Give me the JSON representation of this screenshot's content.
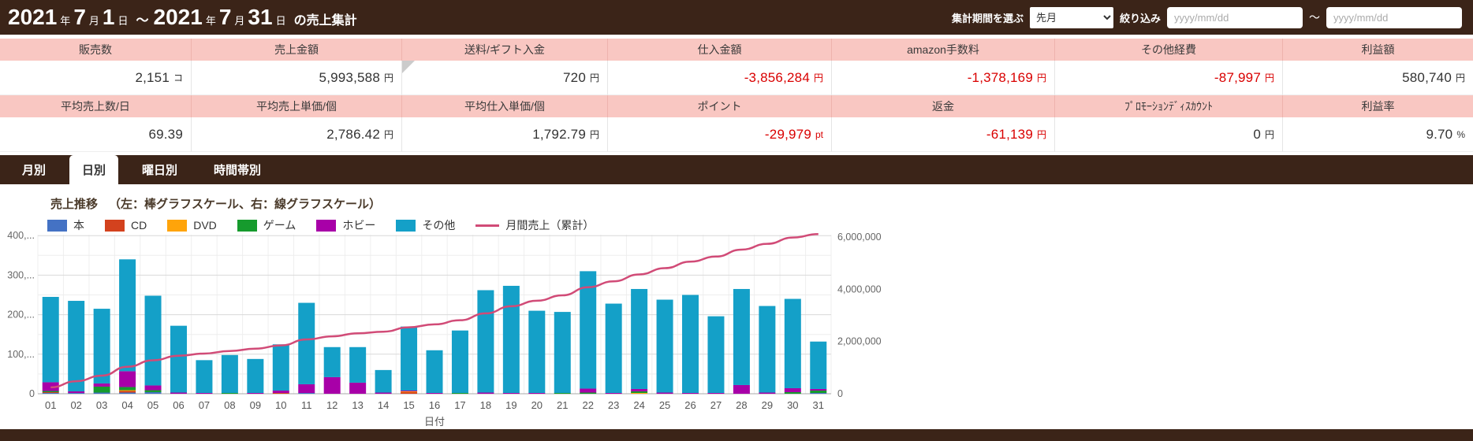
{
  "header": {
    "title_segments": [
      {
        "text": "2021",
        "size": "lg"
      },
      {
        "text": "年",
        "size": "sm"
      },
      {
        "text": "7",
        "size": "lg"
      },
      {
        "text": "月",
        "size": "sm"
      },
      {
        "text": "1",
        "size": "lg"
      },
      {
        "text": "日",
        "size": "sm"
      },
      {
        "text": "～",
        "size": "md"
      },
      {
        "text": "2021",
        "size": "lg"
      },
      {
        "text": "年",
        "size": "sm"
      },
      {
        "text": "7",
        "size": "lg"
      },
      {
        "text": "月",
        "size": "sm"
      },
      {
        "text": "31",
        "size": "lg"
      },
      {
        "text": "日",
        "size": "sm"
      },
      {
        "text": "の売上集計",
        "size": "md"
      }
    ],
    "period_select_label": "集計期間を選ぶ",
    "period_options": [
      "先月"
    ],
    "period_value": "先月",
    "refine_label": "絞り込み",
    "date_from_placeholder": "yyyy/mm/dd",
    "date_range_tilde": "～",
    "date_to_placeholder": "yyyy/mm/dd"
  },
  "summary": {
    "rows": [
      {
        "cells": [
          {
            "label": "販売数",
            "value": "2,151",
            "unit": "コ",
            "red": false
          },
          {
            "label": "売上金額",
            "value": "5,993,588",
            "unit": "円",
            "red": false
          },
          {
            "label": "送料/ギフト入金",
            "value": "720",
            "unit": "円",
            "red": false,
            "corner_marker": true
          },
          {
            "label": "仕入金額",
            "value": "-3,856,284",
            "unit": "円",
            "red": true
          },
          {
            "label": "amazon手数料",
            "value": "-1,378,169",
            "unit": "円",
            "red": true
          },
          {
            "label": "その他経費",
            "value": "-87,997",
            "unit": "円",
            "red": true
          },
          {
            "label": "利益額",
            "value": "580,740",
            "unit": "円",
            "red": false
          }
        ]
      },
      {
        "cells": [
          {
            "label": "平均売上数/日",
            "value": "69.39",
            "unit": "",
            "red": false
          },
          {
            "label": "平均売上単価/個",
            "value": "2,786.42",
            "unit": "円",
            "red": false
          },
          {
            "label": "平均仕入単価/個",
            "value": "1,792.79",
            "unit": "円",
            "red": false
          },
          {
            "label": "ポイント",
            "value": "-29,979",
            "unit": "pt",
            "red": true
          },
          {
            "label": "返金",
            "value": "-61,139",
            "unit": "円",
            "red": true
          },
          {
            "label": "ﾌﾟﾛﾓｰｼｮﾝﾃﾞｨｽｶｳﾝﾄ",
            "value": "0",
            "unit": "円",
            "red": false
          },
          {
            "label": "利益率",
            "value": "9.70",
            "unit": "%",
            "red": false
          }
        ]
      }
    ]
  },
  "tabs": [
    {
      "label": "月別",
      "active": false
    },
    {
      "label": "日別",
      "active": true
    },
    {
      "label": "曜日別",
      "active": false
    },
    {
      "label": "時間帯別",
      "active": false
    }
  ],
  "chart": {
    "title": "売上推移",
    "subtitle": "（左：棒グラフスケール、右：線グラフスケール）",
    "xlabel": "日付"
  },
  "chart_data": {
    "type": "bar+line",
    "title": "売上推移",
    "subtitle": "（左：棒グラフスケール、右：線グラフスケール）",
    "xlabel": "日付",
    "categories": [
      "01",
      "02",
      "03",
      "04",
      "05",
      "06",
      "07",
      "08",
      "09",
      "10",
      "11",
      "12",
      "13",
      "14",
      "15",
      "16",
      "17",
      "18",
      "19",
      "20",
      "21",
      "22",
      "23",
      "24",
      "25",
      "26",
      "27",
      "28",
      "29",
      "30",
      "31"
    ],
    "bar_series": [
      {
        "name": "本",
        "color": "#4472c4",
        "values": [
          2000,
          2000,
          3000,
          3000,
          4000,
          0,
          0,
          0,
          0,
          0,
          2000,
          0,
          0,
          0,
          0,
          0,
          0,
          0,
          0,
          0,
          0,
          0,
          0,
          0,
          0,
          0,
          0,
          0,
          0,
          0,
          2000
        ]
      },
      {
        "name": "CD",
        "color": "#d3421e",
        "values": [
          2000,
          0,
          0,
          4000,
          0,
          0,
          0,
          0,
          0,
          2000,
          0,
          0,
          0,
          0,
          4000,
          0,
          0,
          0,
          0,
          0,
          0,
          0,
          0,
          0,
          0,
          0,
          0,
          0,
          0,
          0,
          0
        ]
      },
      {
        "name": "DVD",
        "color": "#ffa40a",
        "values": [
          0,
          0,
          0,
          2000,
          0,
          0,
          0,
          0,
          0,
          0,
          0,
          0,
          0,
          0,
          2000,
          0,
          0,
          0,
          0,
          0,
          0,
          0,
          0,
          2000,
          0,
          0,
          0,
          0,
          0,
          0,
          0
        ]
      },
      {
        "name": "ゲーム",
        "color": "#169b2d",
        "values": [
          3000,
          0,
          15000,
          8000,
          5000,
          0,
          0,
          2000,
          0,
          0,
          0,
          0,
          0,
          0,
          0,
          0,
          2000,
          0,
          0,
          0,
          2000,
          3000,
          0,
          4000,
          0,
          0,
          0,
          0,
          0,
          4000,
          6000
        ]
      },
      {
        "name": "ホビー",
        "color": "#a800a8",
        "values": [
          22000,
          4000,
          8000,
          40000,
          12000,
          3000,
          2000,
          0,
          2000,
          6000,
          22000,
          42000,
          28000,
          3000,
          2000,
          2000,
          0,
          3000,
          2000,
          2000,
          0,
          10000,
          2000,
          6000,
          3000,
          2000,
          2000,
          22000,
          3000,
          10000,
          4000
        ]
      },
      {
        "name": "その他",
        "color": "#14a0c8",
        "values": [
          216000,
          229000,
          189000,
          283000,
          227000,
          169000,
          83000,
          96000,
          86000,
          117000,
          206000,
          76000,
          90000,
          57000,
          162000,
          108000,
          158000,
          259000,
          271000,
          208000,
          205000,
          297000,
          226000,
          253000,
          235000,
          248000,
          194000,
          243000,
          219000,
          226000,
          120000
        ]
      }
    ],
    "line_series": {
      "name": "月間売上（累計）",
      "color": "#d14b77",
      "values": [
        245000,
        480000,
        695000,
        1035000,
        1283000,
        1455000,
        1540000,
        1638000,
        1726000,
        1851000,
        2081000,
        2199000,
        2317000,
        2377000,
        2547000,
        2657000,
        2817000,
        3079000,
        3352000,
        3562000,
        3769000,
        4079000,
        4307000,
        4572000,
        4810000,
        5060000,
        5256000,
        5521000,
        5743000,
        5983000,
        6115000
      ]
    },
    "left_axis": {
      "min": 0,
      "max": 450000,
      "major": 100000,
      "minor": 50000,
      "tick_labels": [
        "0",
        "100,...",
        "200,...",
        "300,...",
        "400,..."
      ]
    },
    "right_axis": {
      "min": 0,
      "max": 6800000,
      "ticks": [
        0,
        2000000,
        4000000,
        6000000
      ],
      "tick_labels": [
        "0",
        "2,000,000",
        "4,000,000",
        "6,000,000"
      ]
    },
    "legend_position": "top-left",
    "grid": true
  },
  "colors": {
    "brown": "#3b2418",
    "pink_header": "#f9c7c2",
    "negative_red": "#d90000",
    "line_pink": "#d14b77"
  }
}
